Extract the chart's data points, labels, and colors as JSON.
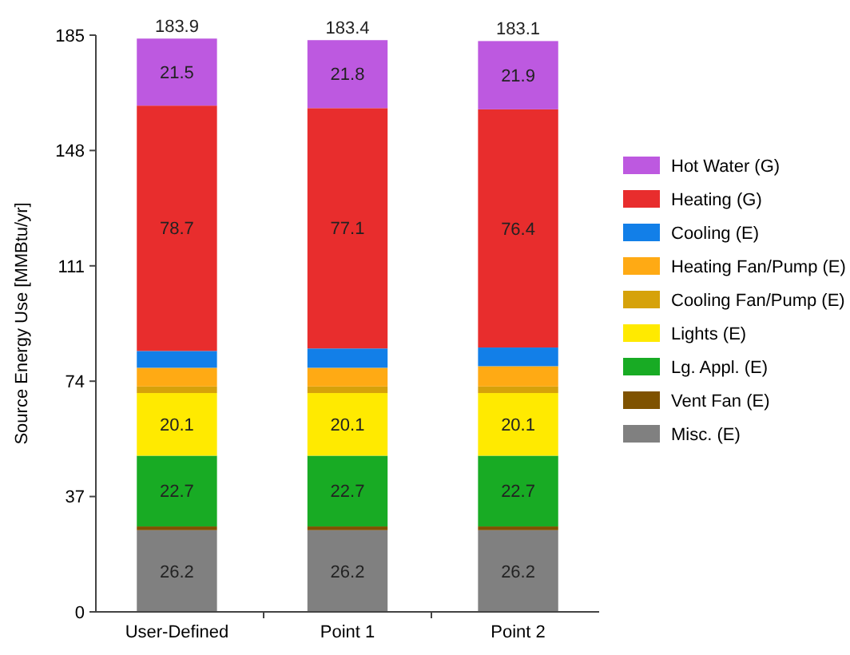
{
  "chart_data": {
    "type": "bar",
    "stacked": true,
    "ylabel": "Source Energy Use [MMBtu/yr]",
    "categories": [
      "User-Defined",
      "Point 1",
      "Point 2"
    ],
    "ylim": [
      0,
      185
    ],
    "yticks": [
      0,
      37,
      74,
      111,
      148,
      185
    ],
    "grid": false,
    "legend": "right",
    "totals": [
      "183.9",
      "183.4",
      "183.1"
    ],
    "series": [
      {
        "name": "Misc. (E)",
        "color": "#808080",
        "values": [
          26.2,
          26.2,
          26.2
        ],
        "value_labels": [
          "26.2",
          "26.2",
          "26.2"
        ]
      },
      {
        "name": "Vent Fan (E)",
        "color": "#7f5200",
        "values": [
          1.2,
          1.2,
          1.2
        ],
        "value_labels": [
          null,
          null,
          null
        ]
      },
      {
        "name": "Lg. Appl. (E)",
        "color": "#18ab24",
        "values": [
          22.7,
          22.7,
          22.7
        ],
        "value_labels": [
          "22.7",
          "22.7",
          "22.7"
        ]
      },
      {
        "name": "Lights (E)",
        "color": "#ffea00",
        "values": [
          20.1,
          20.1,
          20.1
        ],
        "value_labels": [
          "20.1",
          "20.1",
          "20.1"
        ]
      },
      {
        "name": "Cooling Fan/Pump (E)",
        "color": "#d6a20a",
        "values": [
          2.1,
          2.1,
          2.1
        ],
        "value_labels": [
          null,
          null,
          null
        ]
      },
      {
        "name": "Heating Fan/Pump (E)",
        "color": "#ffaa14",
        "values": [
          6.0,
          6.0,
          6.5
        ],
        "value_labels": [
          null,
          null,
          null
        ]
      },
      {
        "name": "Cooling (E)",
        "color": "#127fe8",
        "values": [
          5.4,
          6.2,
          6.0
        ],
        "value_labels": [
          null,
          null,
          null
        ]
      },
      {
        "name": "Heating (G)",
        "color": "#e82d2d",
        "values": [
          78.7,
          77.1,
          76.4
        ],
        "value_labels": [
          "78.7",
          "77.1",
          "76.4"
        ]
      },
      {
        "name": "Hot Water (G)",
        "color": "#bd59e0",
        "values": [
          21.5,
          21.8,
          21.9
        ],
        "value_labels": [
          "21.5",
          "21.8",
          "21.9"
        ]
      }
    ]
  }
}
